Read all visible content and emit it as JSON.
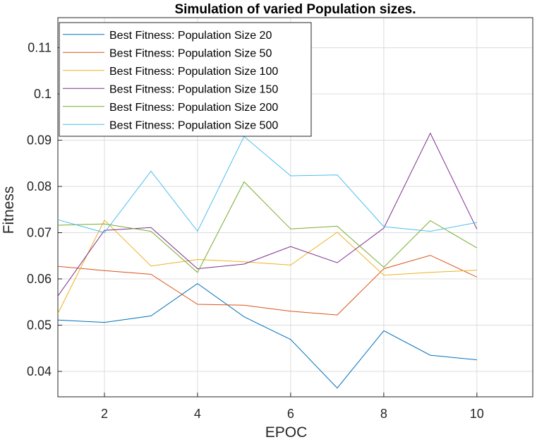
{
  "chart_data": {
    "type": "line",
    "title": "Simulation of varied Population sizes.",
    "xlabel": "EPOC",
    "ylabel": "Fitness",
    "xlim": [
      1,
      11.2
    ],
    "ylim": [
      0.0345,
      0.1165
    ],
    "xticks": [
      2,
      4,
      6,
      8,
      10
    ],
    "yticks": [
      0.04,
      0.05,
      0.06,
      0.07,
      0.08,
      0.09,
      0.1,
      0.11
    ],
    "ytick_labels": [
      "0.04",
      "0.05",
      "0.06",
      "0.07",
      "0.08",
      "0.09",
      "0.1",
      "0.11"
    ],
    "grid": true,
    "legend_position": "top-left",
    "x": [
      1,
      2,
      3,
      4,
      5,
      6,
      7,
      8,
      9,
      10
    ],
    "series": [
      {
        "name": "Best Fitness: Population Size 20",
        "color": "#0072BD",
        "values": [
          0.0511,
          0.0506,
          0.052,
          0.059,
          0.0518,
          0.0469,
          0.0364,
          0.0488,
          0.0435,
          0.0425
        ]
      },
      {
        "name": "Best Fitness: Population Size 50",
        "color": "#D95319",
        "values": [
          0.0627,
          0.0618,
          0.061,
          0.0545,
          0.0543,
          0.053,
          0.0522,
          0.0622,
          0.0651,
          0.0604
        ]
      },
      {
        "name": "Best Fitness: Population Size 100",
        "color": "#EDB120",
        "values": [
          0.0525,
          0.0727,
          0.0628,
          0.0642,
          0.0637,
          0.063,
          0.0701,
          0.0608,
          0.0614,
          0.0619
        ]
      },
      {
        "name": "Best Fitness: Population Size 150",
        "color": "#7E2F8E",
        "values": [
          0.0563,
          0.0705,
          0.0711,
          0.0622,
          0.0632,
          0.067,
          0.0635,
          0.071,
          0.0915,
          0.0708
        ]
      },
      {
        "name": "Best Fitness: Population Size 200",
        "color": "#77AC30",
        "values": [
          0.0716,
          0.0719,
          0.0703,
          0.0614,
          0.081,
          0.0708,
          0.0714,
          0.0625,
          0.0726,
          0.0667
        ]
      },
      {
        "name": "Best Fitness: Population Size 500",
        "color": "#4DBEEE",
        "values": [
          0.0728,
          0.07,
          0.0833,
          0.0703,
          0.0908,
          0.0823,
          0.0825,
          0.0713,
          0.0703,
          0.0722
        ]
      }
    ]
  }
}
